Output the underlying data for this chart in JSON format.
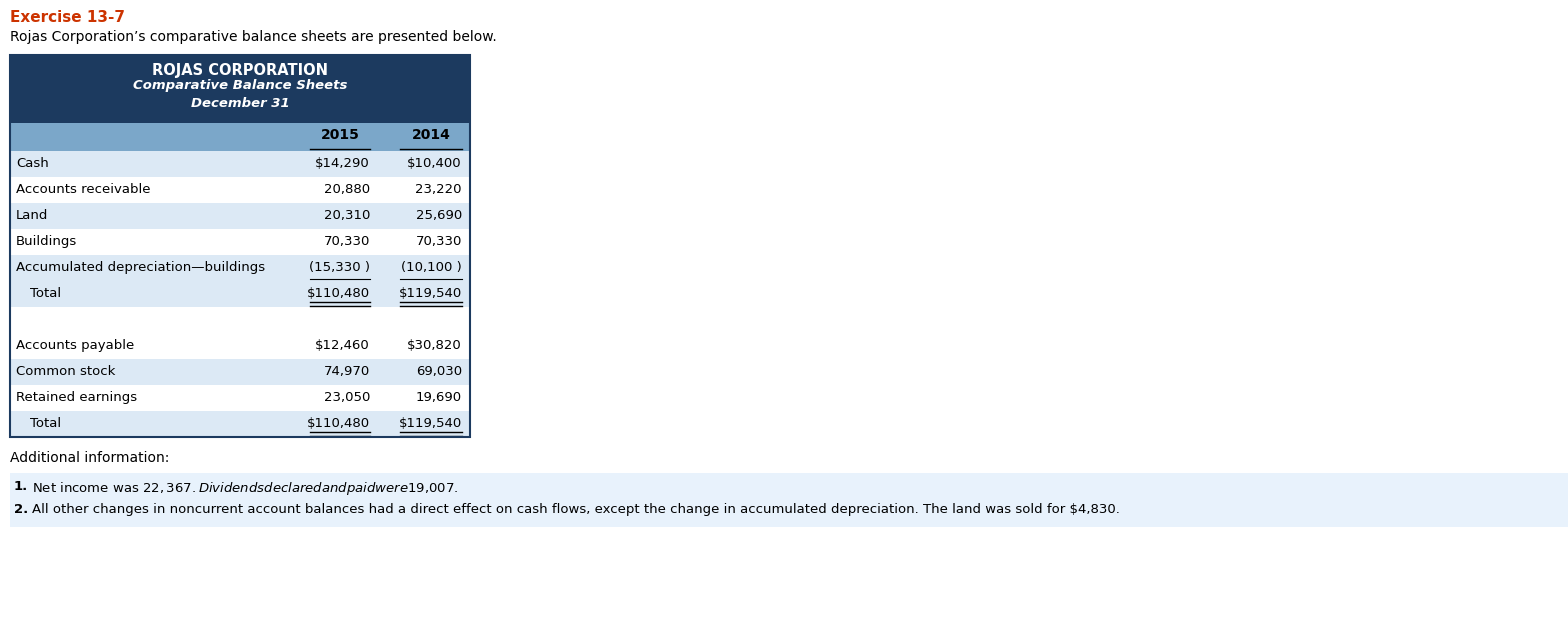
{
  "exercise_label": "Exercise 13-7",
  "intro_text": "Rojas Corporation’s comparative balance sheets are presented below.",
  "table_title_line1": "ROJAS CORPORATION",
  "table_title_line2": "Comparative Balance Sheets",
  "table_title_line3": "December 31",
  "col_headers": [
    "2015",
    "2014"
  ],
  "rows": [
    {
      "label": "Cash",
      "indent": false,
      "val2015": "$14,290",
      "val2014": "$10,400",
      "bg": "alt",
      "ul2015": false,
      "ul2014": false
    },
    {
      "label": "Accounts receivable",
      "indent": false,
      "val2015": "20,880",
      "val2014": "23,220",
      "bg": "white",
      "ul2015": false,
      "ul2014": false
    },
    {
      "label": "Land",
      "indent": false,
      "val2015": "20,310",
      "val2014": "25,690",
      "bg": "alt",
      "ul2015": false,
      "ul2014": false
    },
    {
      "label": "Buildings",
      "indent": false,
      "val2015": "70,330",
      "val2014": "70,330",
      "bg": "white",
      "ul2015": false,
      "ul2014": false
    },
    {
      "label": "Accumulated depreciation—buildings",
      "indent": false,
      "val2015": "(15,330 )",
      "val2014": "(10,100 )",
      "bg": "alt",
      "ul2015": true,
      "ul2014": true
    },
    {
      "label": "Total",
      "indent": true,
      "val2015": "$110,480",
      "val2014": "$119,540",
      "bg": "alt",
      "ul2015": true,
      "ul2014": true,
      "double_ul": true
    },
    {
      "label": "",
      "indent": false,
      "val2015": "",
      "val2014": "",
      "bg": "white",
      "ul2015": false,
      "ul2014": false
    },
    {
      "label": "Accounts payable",
      "indent": false,
      "val2015": "$12,460",
      "val2014": "$30,820",
      "bg": "white",
      "ul2015": false,
      "ul2014": false
    },
    {
      "label": "Common stock",
      "indent": false,
      "val2015": "74,970",
      "val2014": "69,030",
      "bg": "alt",
      "ul2015": false,
      "ul2014": false
    },
    {
      "label": "Retained earnings",
      "indent": false,
      "val2015": "23,050",
      "val2014": "19,690",
      "bg": "white",
      "ul2015": false,
      "ul2014": false
    },
    {
      "label": "Total",
      "indent": true,
      "val2015": "$110,480",
      "val2014": "$119,540",
      "bg": "alt",
      "ul2015": true,
      "ul2014": true,
      "double_ul": true
    }
  ],
  "notes": [
    "Net income was $22,367. Dividends declared and paid were $19,007.",
    "All other changes in noncurrent account balances had a direct effect on cash flows, except the change in accumulated depreciation. The land was sold for $4,830."
  ],
  "colors": {
    "exercise_label": "#CC3300",
    "header_bg": "#1C3A5F",
    "header_text": "#FFFFFF",
    "subheader_bg": "#7BA7C9",
    "row_white": "#FFFFFF",
    "row_alt": "#DCE9F5",
    "notes_bg": "#E8F2FC",
    "border": "#1C3A5F",
    "page_bg": "#FFFFFF"
  }
}
